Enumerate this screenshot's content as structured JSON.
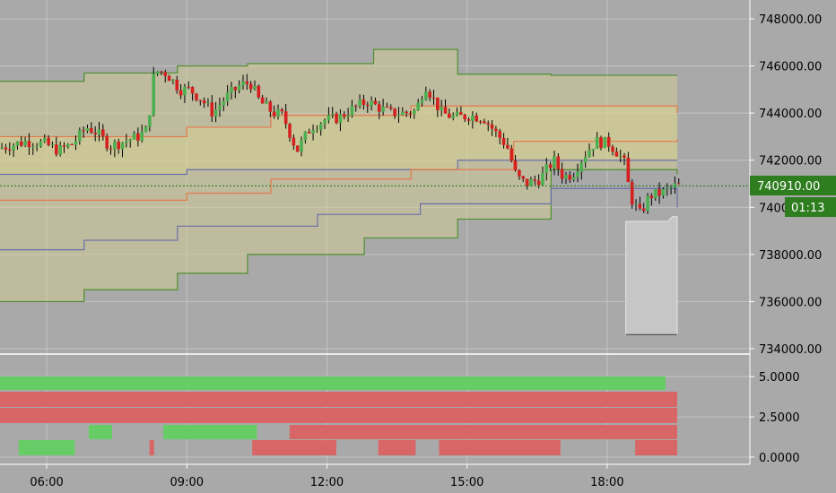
{
  "chart_data": [
    {
      "type": "candlestick",
      "title": "",
      "ylim": [
        734000,
        748000
      ],
      "y_ticks": [
        "748000.00",
        "746000.00",
        "744000.00",
        "742000.00",
        "740000.00",
        "738000.00",
        "736000.00",
        "734000.00"
      ],
      "y_tick_values": [
        748000,
        746000,
        744000,
        742000,
        740000,
        738000,
        736000,
        734000
      ],
      "x_ticks": [
        "06:00",
        "09:00",
        "12:00",
        "15:00",
        "18:00"
      ],
      "x_tick_hours": [
        6,
        9,
        12,
        15,
        18
      ],
      "x_range_hours": [
        5.0,
        20.0
      ],
      "last_price": 740910,
      "last_price_label": "740910.00",
      "countdown_label": "01:13",
      "colors": {
        "up": "#4caf50",
        "down": "#d62020",
        "wick": "#000000",
        "band_fill": "#d8d190",
        "outer_band": "#4e8f2e",
        "mid_band": "#e57a4c",
        "inner_band": "#6a6fa8",
        "last_price_line": "#1e7a1e"
      },
      "bands": {
        "outer_upper": [
          [
            5.0,
            745350
          ],
          [
            6.8,
            745700
          ],
          [
            8.8,
            746000
          ],
          [
            10.3,
            746100
          ],
          [
            13.0,
            746700
          ],
          [
            14.8,
            745650
          ],
          [
            16.8,
            745600
          ],
          [
            19.5,
            745600
          ]
        ],
        "mid_upper": [
          [
            5.0,
            743000
          ],
          [
            9.0,
            743400
          ],
          [
            10.8,
            743900
          ],
          [
            13.8,
            744300
          ],
          [
            19.5,
            744000
          ]
        ],
        "inner_upper": [
          [
            5.0,
            741400
          ],
          [
            9.0,
            741600
          ],
          [
            14.8,
            742000
          ],
          [
            19.5,
            742000
          ]
        ],
        "inner_lower": [
          [
            5.0,
            738200
          ],
          [
            6.8,
            738600
          ],
          [
            8.8,
            739200
          ],
          [
            11.8,
            739700
          ],
          [
            14.0,
            740150
          ],
          [
            16.8,
            740800
          ],
          [
            19.5,
            740000
          ]
        ],
        "outer_lower": [
          [
            5.0,
            736000
          ],
          [
            6.8,
            736500
          ],
          [
            8.8,
            737200
          ],
          [
            10.3,
            738000
          ],
          [
            12.8,
            738700
          ],
          [
            14.8,
            739500
          ],
          [
            16.8,
            741600
          ],
          [
            19.5,
            741400
          ]
        ]
      },
      "candle_path": [
        [
          5.0,
          742500
        ],
        [
          5.6,
          742800
        ],
        [
          6.0,
          742700
        ],
        [
          6.3,
          742400
        ],
        [
          6.6,
          742700
        ],
        [
          6.9,
          743400
        ],
        [
          7.1,
          743200
        ],
        [
          7.4,
          742600
        ],
        [
          7.7,
          742800
        ],
        [
          8.0,
          743000
        ],
        [
          8.2,
          743300
        ],
        [
          8.35,
          745800
        ],
        [
          8.6,
          745700
        ],
        [
          8.9,
          745000
        ],
        [
          9.1,
          745000
        ],
        [
          9.35,
          744600
        ],
        [
          9.6,
          744000
        ],
        [
          9.9,
          744700
        ],
        [
          10.2,
          745200
        ],
        [
          10.4,
          745300
        ],
        [
          10.6,
          744500
        ],
        [
          10.9,
          744000
        ],
        [
          11.1,
          743900
        ],
        [
          11.4,
          742400
        ],
        [
          11.7,
          743400
        ],
        [
          12.0,
          743700
        ],
        [
          12.3,
          743800
        ],
        [
          12.6,
          744200
        ],
        [
          12.9,
          744500
        ],
        [
          13.1,
          744300
        ],
        [
          13.4,
          744000
        ],
        [
          13.7,
          744000
        ],
        [
          13.95,
          744100
        ],
        [
          14.15,
          745200
        ],
        [
          14.35,
          744500
        ],
        [
          14.5,
          744000
        ],
        [
          14.8,
          743800
        ],
        [
          15.1,
          743900
        ],
        [
          15.4,
          743800
        ],
        [
          15.6,
          743300
        ],
        [
          15.9,
          742600
        ],
        [
          16.1,
          741300
        ],
        [
          16.3,
          741000
        ],
        [
          16.6,
          741200
        ],
        [
          16.9,
          742000
        ],
        [
          17.1,
          741300
        ],
        [
          17.3,
          741400
        ],
        [
          17.55,
          742200
        ],
        [
          17.8,
          742800
        ],
        [
          18.1,
          742700
        ],
        [
          18.4,
          742000
        ],
        [
          18.55,
          740400
        ],
        [
          18.75,
          739700
        ],
        [
          18.95,
          740500
        ],
        [
          19.2,
          740600
        ],
        [
          19.5,
          740900
        ]
      ],
      "volume_box": {
        "x_start": 18.4,
        "x_end": 19.3,
        "top_left": 739400,
        "top_right": 739600,
        "bottom": 734600
      }
    },
    {
      "type": "bar",
      "ylim": [
        0,
        6
      ],
      "y_ticks": [
        "5.0000",
        "2.5000",
        "0.0000"
      ],
      "y_tick_values": [
        5.0,
        2.5,
        0.0
      ],
      "colors": {
        "green": "#66cc66",
        "red": "#d96666"
      },
      "bars": [
        {
          "series": "green",
          "value": 5.0,
          "x_start": 5.0,
          "x_end": 19.25
        },
        {
          "series": "red",
          "value": 4.1,
          "x_start": 5.0,
          "x_end": 19.5
        },
        {
          "series": "red",
          "value": 2.0,
          "x_start": 5.0,
          "x_end": 19.5
        },
        {
          "series": "green",
          "value": 1.0,
          "x_start": 8.5,
          "x_end": 10.5
        },
        {
          "series": "red",
          "value": 1.0,
          "x_start": 11.2,
          "x_end": 19.5
        },
        {
          "series": "green",
          "value": 0.5,
          "x_start": 5.4,
          "x_end": 5.8
        },
        {
          "series": "green",
          "value": 0.5,
          "x_start": 5.8,
          "x_end": 6.6
        },
        {
          "series": "green",
          "value": 1.0,
          "x_start": 6.9,
          "x_end": 7.4
        },
        {
          "series": "red",
          "value": 0.5,
          "x_start": 8.2,
          "x_end": 8.3
        },
        {
          "series": "green",
          "value": 1.0,
          "x_start": 8.5,
          "x_end": 9.8
        },
        {
          "series": "red",
          "value": 0.5,
          "x_start": 10.4,
          "x_end": 12.2
        },
        {
          "series": "red",
          "value": 0.5,
          "x_start": 13.1,
          "x_end": 13.9
        },
        {
          "series": "red",
          "value": 0.5,
          "x_start": 14.4,
          "x_end": 17.0
        },
        {
          "series": "red",
          "value": 0.5,
          "x_start": 18.6,
          "x_end": 19.5
        }
      ]
    }
  ]
}
